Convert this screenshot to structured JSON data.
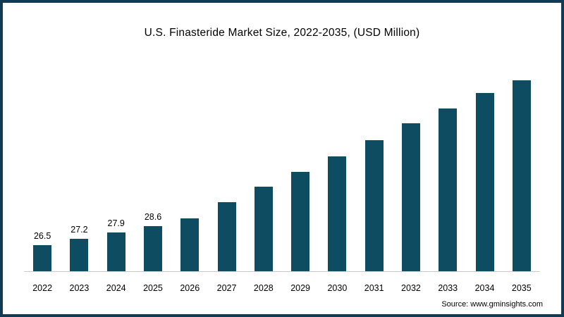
{
  "title": "U.S. Finasteride Market Size, 2022-2035, (USD Million)",
  "source": "Source: www.gminsights.com",
  "chart_data": {
    "type": "bar",
    "title": "U.S. Finasteride Market Size, 2022-2035, (USD Million)",
    "categories": [
      "2022",
      "2023",
      "2024",
      "2025",
      "2026",
      "2027",
      "2028",
      "2029",
      "2030",
      "2031",
      "2032",
      "2033",
      "2034",
      "2035"
    ],
    "values": [
      26.5,
      27.2,
      27.9,
      28.6,
      29.5,
      31.3,
      33.0,
      34.7,
      36.4,
      38.2,
      40.1,
      41.8,
      43.5,
      45.2
    ],
    "value_labels_shown": [
      "26.5",
      "27.2",
      "27.9",
      "28.6",
      "",
      "",
      "",
      "",
      "",
      "",
      "",
      "",
      "",
      ""
    ],
    "xlabel": "",
    "ylabel": "",
    "ylim": [
      23.5,
      46.5
    ],
    "grid": false,
    "legend": "none",
    "y_axis_visible": false,
    "bar_color": "#0e4d61",
    "frame_color": "#113a55",
    "note": "Values for 2026-2035 are not labeled in the figure; they are estimated from bar heights anchored to the four labeled values."
  }
}
